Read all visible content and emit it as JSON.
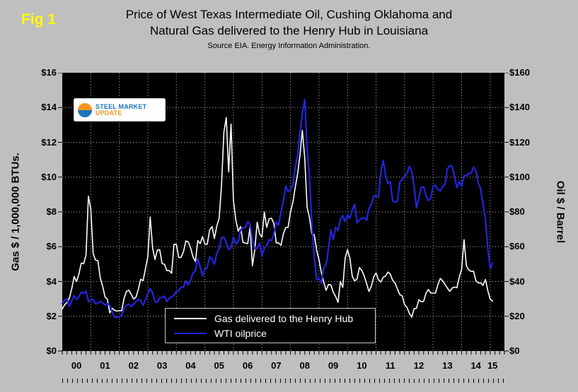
{
  "fig_label": "Fig 1",
  "title": {
    "line1": "Price of West Texas Intermediate Oil, Cushing Oklahoma and",
    "line2": "Natural Gas delivered to the Henry Hub in Louisiana",
    "source": "Source EIA. Energy Information Administration."
  },
  "axes": {
    "left_label": "Gas $ / 1,000,000 BTUs.",
    "right_label": "Oil $ / Barrel",
    "left_ticks": [
      "$16",
      "$14",
      "$12",
      "$10",
      "$8",
      "$6",
      "$4",
      "$2",
      "$0"
    ],
    "right_ticks": [
      "$160",
      "$140",
      "$120",
      "$100",
      "$80",
      "$60",
      "$40",
      "$20",
      "$0"
    ],
    "x_ticks": [
      "00",
      "01",
      "02",
      "03",
      "04",
      "05",
      "06",
      "07",
      "08",
      "09",
      "10",
      "11",
      "12",
      "13",
      "14",
      "15"
    ]
  },
  "legend": {
    "gas": "Gas delivered to the Henry Hub",
    "oil": "WTI oilprice"
  },
  "logo": {
    "word1": "STEEL",
    "word2": "MARKET",
    "word3": "UPDATE"
  },
  "colors": {
    "gas_line": "#ffffff",
    "oil_line": "#2424dd",
    "plot_bg": "#000000",
    "page_bg": "#bfbfbf",
    "fig_label": "#ffff00"
  },
  "chart_data": {
    "type": "line",
    "x_start": "2000-01",
    "x_interval": "monthly",
    "left_ylim": [
      0,
      16
    ],
    "right_ylim": [
      0,
      160
    ],
    "grid": "dotted-white",
    "legend_position": "bottom-center-inside",
    "series": [
      {
        "name": "Gas delivered to the Henry Hub",
        "axis": "left",
        "color": "#ffffff",
        "values": [
          2.42,
          2.66,
          2.79,
          3.04,
          3.59,
          4.29,
          3.99,
          4.43,
          5.06,
          5.02,
          5.52,
          8.9,
          8.17,
          5.61,
          5.23,
          5.19,
          4.19,
          3.72,
          3.11,
          2.97,
          2.19,
          2.46,
          2.34,
          2.3,
          2.32,
          2.32,
          3.03,
          3.43,
          3.5,
          3.26,
          2.99,
          3.09,
          3.55,
          4.13,
          4.04,
          4.74,
          5.43,
          7.71,
          5.93,
          5.26,
          5.81,
          5.82,
          5.03,
          4.99,
          4.62,
          4.63,
          4.47,
          6.13,
          6.14,
          5.37,
          5.39,
          5.71,
          6.33,
          6.27,
          5.93,
          5.41,
          5.15,
          6.35,
          6.17,
          6.58,
          6.15,
          6.14,
          6.96,
          7.16,
          6.47,
          7.18,
          7.63,
          9.53,
          12.6,
          13.42,
          10.3,
          13.05,
          8.66,
          7.54,
          6.89,
          7.16,
          6.25,
          6.21,
          6.17,
          7.14,
          4.9,
          5.85,
          7.41,
          6.73,
          6.55,
          8.0,
          7.11,
          7.6,
          7.64,
          7.35,
          6.22,
          6.22,
          6.08,
          6.74,
          7.1,
          7.11,
          7.99,
          8.54,
          9.41,
          10.18,
          11.27,
          12.69,
          11.09,
          8.26,
          7.67,
          6.74,
          6.68,
          5.82,
          5.24,
          4.51,
          3.96,
          3.49,
          3.83,
          3.8,
          3.38,
          3.14,
          2.8,
          4.0,
          3.66,
          5.34,
          5.83,
          5.32,
          4.29,
          4.03,
          4.14,
          4.8,
          4.63,
          4.32,
          3.89,
          3.43,
          3.71,
          4.25,
          4.49,
          4.09,
          3.97,
          4.24,
          4.31,
          4.54,
          4.42,
          4.06,
          3.9,
          3.57,
          3.24,
          3.17,
          2.67,
          2.51,
          2.17,
          1.95,
          2.43,
          2.46,
          2.95,
          2.84,
          2.85,
          3.32,
          3.54,
          3.34,
          3.33,
          3.33,
          3.81,
          4.17,
          4.04,
          3.83,
          3.62,
          3.43,
          3.62,
          3.68,
          3.64,
          4.24,
          4.71,
          6.4,
          4.9,
          4.66,
          4.58,
          4.59,
          4.05,
          3.91,
          3.92,
          3.78,
          4.12,
          3.48,
          2.99,
          2.87
        ]
      },
      {
        "name": "WTI oilprice",
        "axis": "right",
        "color": "#2424dd",
        "values": [
          27.26,
          29.37,
          29.84,
          25.72,
          28.79,
          31.82,
          29.7,
          31.26,
          33.88,
          33.11,
          34.42,
          28.44,
          29.59,
          29.61,
          27.25,
          27.49,
          28.63,
          27.6,
          26.43,
          27.37,
          26.2,
          22.17,
          19.64,
          19.39,
          19.72,
          20.72,
          24.53,
          26.18,
          27.04,
          25.52,
          26.97,
          28.39,
          29.66,
          28.84,
          26.35,
          29.46,
          32.95,
          35.83,
          33.51,
          28.17,
          28.11,
          30.66,
          30.76,
          31.57,
          28.31,
          30.34,
          31.11,
          32.13,
          34.31,
          34.69,
          36.74,
          36.75,
          40.28,
          38.03,
          40.78,
          44.9,
          45.94,
          53.28,
          48.47,
          43.15,
          46.84,
          48.15,
          54.19,
          52.98,
          49.83,
          56.35,
          59.0,
          64.99,
          65.59,
          62.26,
          58.32,
          59.41,
          65.49,
          61.63,
          62.69,
          69.44,
          70.84,
          70.95,
          74.41,
          73.04,
          63.8,
          58.89,
          59.08,
          61.96,
          54.51,
          59.28,
          60.44,
          63.98,
          63.46,
          67.49,
          74.12,
          72.36,
          79.92,
          85.8,
          94.77,
          91.69,
          92.97,
          95.39,
          105.45,
          112.58,
          125.4,
          137.0,
          144.5,
          116.67,
          100.11,
          72.61,
          54.31,
          41.12,
          41.71,
          39.09,
          47.94,
          49.65,
          59.03,
          69.64,
          64.15,
          71.05,
          69.41,
          75.72,
          77.99,
          74.47,
          78.33,
          76.39,
          81.2,
          84.29,
          73.74,
          75.34,
          76.32,
          76.6,
          75.24,
          81.89,
          84.25,
          89.15,
          89.17,
          88.58,
          102.86,
          109.53,
          100.9,
          96.26,
          97.3,
          86.33,
          85.52,
          86.32,
          97.16,
          98.56,
          100.27,
          102.2,
          106.16,
          103.32,
          94.66,
          82.3,
          87.9,
          94.13,
          94.51,
          89.49,
          86.53,
          87.86,
          94.76,
          95.31,
          92.94,
          92.02,
          94.51,
          95.77,
          104.67,
          106.57,
          106.29,
          100.54,
          93.86,
          97.63,
          94.62,
          100.82,
          100.8,
          102.07,
          102.18,
          105.79,
          103.59,
          96.54,
          93.21,
          84.4,
          75.79,
          59.29,
          47.22,
          50.58
        ]
      }
    ]
  }
}
